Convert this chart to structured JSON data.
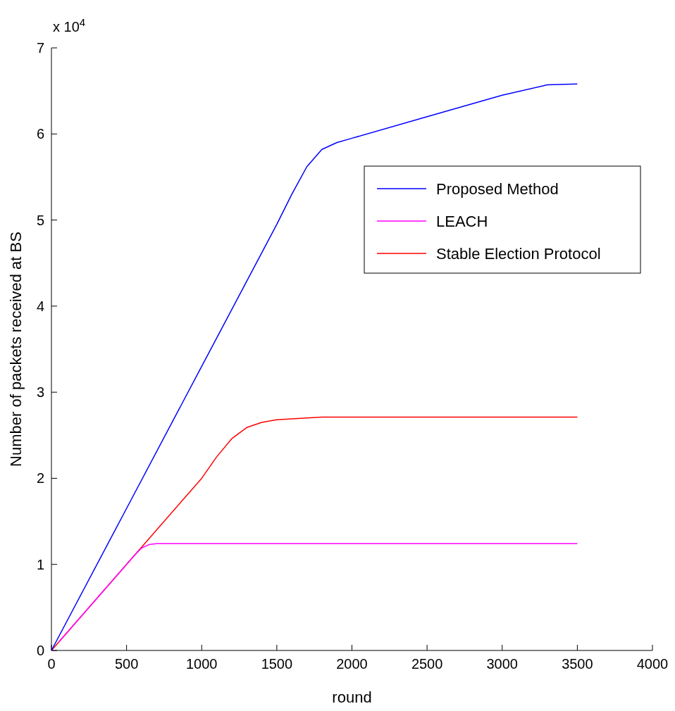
{
  "chart_data": {
    "type": "line",
    "xlabel": "round",
    "ylabel": "Number of packets received at BS",
    "annotations": [
      "x 10$^{4}$"
    ],
    "xlim": [
      0,
      4000
    ],
    "xticks": [
      0,
      500,
      1000,
      1500,
      2000,
      2500,
      3000,
      3500,
      4000
    ],
    "ylim": [
      0,
      7
    ],
    "yticks": [
      0,
      1,
      2,
      3,
      4,
      5,
      6,
      7
    ],
    "grid": false,
    "legend": "top right",
    "line_style": "solid",
    "series": [
      {
        "name": "Proposed Method",
        "color": "#0000ff",
        "x": [
          0,
          500,
          1000,
          1500,
          1600,
          1700,
          1800,
          1900,
          2000,
          2500,
          3000,
          3300,
          3500
        ],
        "values": [
          0,
          1.65,
          3.3,
          4.95,
          5.3,
          5.62,
          5.82,
          5.9,
          5.95,
          6.2,
          6.45,
          6.57,
          6.58
        ]
      },
      {
        "name": "LEACH",
        "color": "#ff00ff",
        "x": [
          50,
          500,
          550,
          600,
          650,
          700,
          1000,
          2000,
          3500
        ],
        "values": [
          0.1,
          1.0,
          1.1,
          1.19,
          1.23,
          1.24,
          1.24,
          1.24,
          1.24
        ]
      },
      {
        "name": "Stable Election Protocol",
        "color": "#ff0000",
        "x": [
          0,
          1000,
          1100,
          1200,
          1300,
          1400,
          1500,
          1800,
          2500,
          3500
        ],
        "values": [
          0,
          2.0,
          2.25,
          2.46,
          2.59,
          2.65,
          2.68,
          2.71,
          2.71,
          2.71
        ]
      }
    ]
  }
}
